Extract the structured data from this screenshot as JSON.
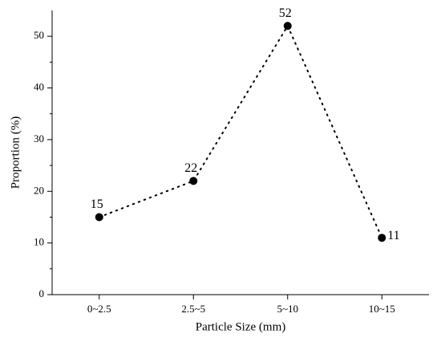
{
  "chart_data": {
    "type": "line",
    "xlabel": "Particle Size (mm)",
    "ylabel": "Proportion (%)",
    "categories": [
      "0~2.5",
      "2.5~5",
      "5~10",
      "10~15"
    ],
    "series": [
      {
        "color": "#000000",
        "values": [
          15,
          22,
          52,
          11
        ]
      }
    ],
    "ylim": [
      0,
      55
    ],
    "yticks": [
      0,
      10,
      20,
      30,
      40,
      50
    ],
    "line_style": "dotted",
    "data_labels": true
  }
}
